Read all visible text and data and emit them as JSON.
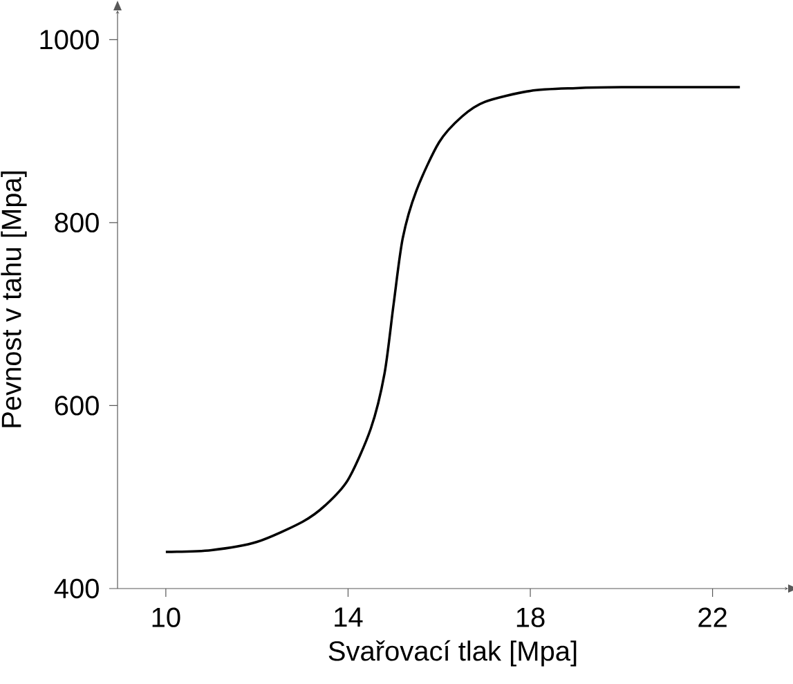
{
  "chart_data": {
    "type": "line",
    "xlabel": "Svařovací tlak [Mpa]",
    "ylabel": "Pevnost v tahu [Mpa]",
    "x": [
      10,
      11,
      12,
      13,
      13.5,
      14,
      14.5,
      14.8,
      15,
      15.2,
      15.5,
      16,
      16.5,
      17,
      18,
      19,
      20,
      22.6
    ],
    "series": [
      {
        "color": "#000000",
        "values": [
          440,
          442,
          451,
          473,
          491,
          519,
          575,
          635,
          711,
          783,
          835,
          888,
          916,
          932,
          944,
          947,
          948,
          948
        ]
      }
    ],
    "xlim": [
      8.94,
      23.66
    ],
    "ylim": [
      400,
      1032
    ],
    "xticks": [
      10,
      14,
      18,
      22
    ],
    "yticks": [
      400,
      600,
      800,
      1000
    ],
    "grid": false,
    "marker": "none",
    "line_style": "solid"
  }
}
